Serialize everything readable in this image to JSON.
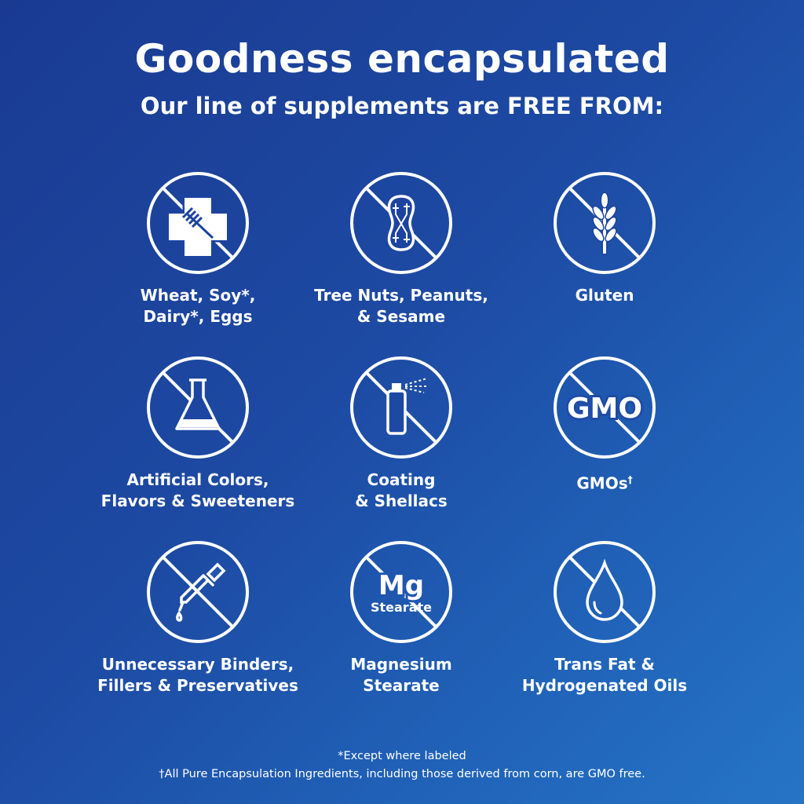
{
  "header": {
    "title": "Goodness encapsulated",
    "subtitle": "Our line of supplements are FREE FROM:"
  },
  "items": [
    {
      "icon": "allergen-cross-fork-icon",
      "line1": "Wheat, Soy*,",
      "line2": "Dairy*, Eggs"
    },
    {
      "icon": "peanut-icon",
      "line1": "Tree Nuts, Peanuts,",
      "line2": "& Sesame"
    },
    {
      "icon": "wheat-icon",
      "line1": "Gluten",
      "line2": ""
    },
    {
      "icon": "flask-icon",
      "line1": "Artificial Colors,",
      "line2": "Flavors & Sweeteners"
    },
    {
      "icon": "spray-bottle-icon",
      "line1": "Coating",
      "line2": "& Shellacs"
    },
    {
      "icon": "gmo-icon",
      "icon_text": "GMO",
      "line1": "GMOs",
      "line1_sup": "†",
      "line2": ""
    },
    {
      "icon": "dropper-icon",
      "line1": "Unnecessary Binders,",
      "line2": "Fillers & Preservatives"
    },
    {
      "icon": "mg-stearate-icon",
      "icon_text": "Mg",
      "icon_subtext": "Stearate",
      "line1": "Magnesium",
      "line2": "Stearate"
    },
    {
      "icon": "oil-drop-icon",
      "line1": "Trans Fat &",
      "line2": "Hydrogenated Oils"
    }
  ],
  "footer": {
    "note1": "*Except where labeled",
    "note2": "†All Pure Encapsulation Ingredients, including those derived from corn, are GMO free."
  },
  "colors": {
    "background_start": "#1a3a92",
    "background_end": "#2674c6",
    "foreground": "#ffffff"
  }
}
